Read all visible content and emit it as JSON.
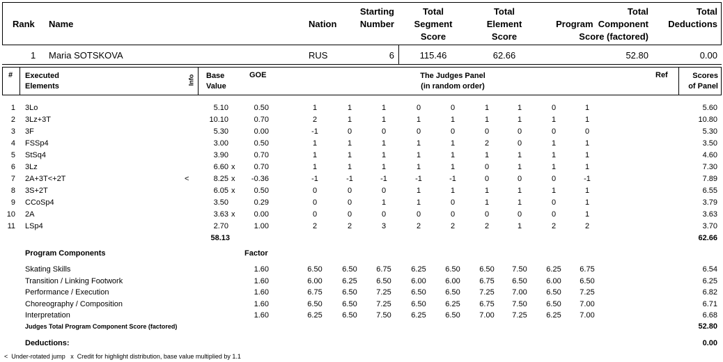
{
  "summary_header": {
    "rank": "Rank",
    "name": "Name",
    "nation": "Nation",
    "starting_number": [
      "Starting",
      "Number"
    ],
    "tss": [
      "Total",
      "Segment",
      "Score"
    ],
    "tes": [
      "Total",
      "Element",
      "Score"
    ],
    "pcs": [
      "Total",
      "Program  Component",
      "Score (factored)"
    ],
    "ded": [
      "Total",
      "Deductions"
    ]
  },
  "skater": {
    "rank": "1",
    "name": "Maria SOTSKOVA",
    "nation": "RUS",
    "starting_number": "6",
    "tss": "115.46",
    "tes": "62.66",
    "pcs": "52.80",
    "ded": "0.00"
  },
  "element_header": {
    "num": "#",
    "exec": [
      "Executed",
      "Elements"
    ],
    "info": "Info",
    "base": [
      "Base",
      "Value"
    ],
    "goe": "GOE",
    "panel": [
      "The Judges Panel",
      "(in random order)"
    ],
    "ref": "Ref",
    "scores": [
      "Scores",
      "of Panel"
    ]
  },
  "elements": [
    {
      "n": "1",
      "el": "3Lo",
      "info": "",
      "base": "5.10",
      "x": "",
      "goe": "0.50",
      "j": [
        "1",
        "1",
        "1",
        "0",
        "0",
        "1",
        "1",
        "0",
        "1"
      ],
      "score": "5.60"
    },
    {
      "n": "2",
      "el": "3Lz+3T",
      "info": "",
      "base": "10.10",
      "x": "",
      "goe": "0.70",
      "j": [
        "2",
        "1",
        "1",
        "1",
        "1",
        "1",
        "1",
        "1",
        "1"
      ],
      "score": "10.80"
    },
    {
      "n": "3",
      "el": "3F",
      "info": "",
      "base": "5.30",
      "x": "",
      "goe": "0.00",
      "j": [
        "-1",
        "0",
        "0",
        "0",
        "0",
        "0",
        "0",
        "0",
        "0"
      ],
      "score": "5.30"
    },
    {
      "n": "4",
      "el": "FSSp4",
      "info": "",
      "base": "3.00",
      "x": "",
      "goe": "0.50",
      "j": [
        "1",
        "1",
        "1",
        "1",
        "1",
        "2",
        "0",
        "1",
        "1"
      ],
      "score": "3.50"
    },
    {
      "n": "5",
      "el": "StSq4",
      "info": "",
      "base": "3.90",
      "x": "",
      "goe": "0.70",
      "j": [
        "1",
        "1",
        "1",
        "1",
        "1",
        "1",
        "1",
        "1",
        "1"
      ],
      "score": "4.60"
    },
    {
      "n": "6",
      "el": "3Lz",
      "info": "",
      "base": "6.60",
      "x": "x",
      "goe": "0.70",
      "j": [
        "1",
        "1",
        "1",
        "1",
        "1",
        "0",
        "1",
        "1",
        "1"
      ],
      "score": "7.30"
    },
    {
      "n": "7",
      "el": "2A+3T<+2T",
      "info": "<",
      "base": "8.25",
      "x": "x",
      "goe": "-0.36",
      "j": [
        "-1",
        "-1",
        "-1",
        "-1",
        "-1",
        "0",
        "0",
        "0",
        "-1"
      ],
      "score": "7.89"
    },
    {
      "n": "8",
      "el": "3S+2T",
      "info": "",
      "base": "6.05",
      "x": "x",
      "goe": "0.50",
      "j": [
        "0",
        "0",
        "0",
        "1",
        "1",
        "1",
        "1",
        "1",
        "1"
      ],
      "score": "6.55"
    },
    {
      "n": "9",
      "el": "CCoSp4",
      "info": "",
      "base": "3.50",
      "x": "",
      "goe": "0.29",
      "j": [
        "0",
        "0",
        "1",
        "1",
        "0",
        "1",
        "1",
        "0",
        "1"
      ],
      "score": "3.79"
    },
    {
      "n": "10",
      "el": "2A",
      "info": "",
      "base": "3.63",
      "x": "x",
      "goe": "0.00",
      "j": [
        "0",
        "0",
        "0",
        "0",
        "0",
        "0",
        "0",
        "0",
        "1"
      ],
      "score": "3.63"
    },
    {
      "n": "11",
      "el": "LSp4",
      "info": "",
      "base": "2.70",
      "x": "",
      "goe": "1.00",
      "j": [
        "2",
        "2",
        "3",
        "2",
        "2",
        "2",
        "1",
        "2",
        "2"
      ],
      "score": "3.70"
    }
  ],
  "elements_total_base": "58.13",
  "elements_total_score": "62.66",
  "pc_header": {
    "title": "Program Components",
    "factor": "Factor"
  },
  "components": [
    {
      "name": "Skating Skills",
      "factor": "1.60",
      "j": [
        "6.50",
        "6.50",
        "6.75",
        "6.25",
        "6.50",
        "6.50",
        "7.50",
        "6.25",
        "6.75"
      ],
      "score": "6.54"
    },
    {
      "name": "Transition / Linking Footwork",
      "factor": "1.60",
      "j": [
        "6.00",
        "6.25",
        "6.50",
        "6.00",
        "6.00",
        "6.75",
        "6.50",
        "6.00",
        "6.50"
      ],
      "score": "6.25"
    },
    {
      "name": "Performance / Execution",
      "factor": "1.60",
      "j": [
        "6.75",
        "6.50",
        "7.25",
        "6.50",
        "6.50",
        "7.25",
        "7.00",
        "6.50",
        "7.25"
      ],
      "score": "6.82"
    },
    {
      "name": "Choreography / Composition",
      "factor": "1.60",
      "j": [
        "6.50",
        "6.50",
        "7.25",
        "6.50",
        "6.25",
        "6.75",
        "7.50",
        "6.50",
        "7.00"
      ],
      "score": "6.71"
    },
    {
      "name": "Interpretation",
      "factor": "1.60",
      "j": [
        "6.25",
        "6.50",
        "7.50",
        "6.25",
        "6.50",
        "7.00",
        "7.25",
        "6.25",
        "7.00"
      ],
      "score": "6.68"
    }
  ],
  "pcs_total_label": "Judges Total Program Component Score (factored)",
  "pcs_total": "52.80",
  "deductions_label": "Deductions:",
  "deductions_value": "0.00",
  "footnote": "<  Under-rotated jump   x  Credit for highlight distribution, base value multiplied by 1.1"
}
